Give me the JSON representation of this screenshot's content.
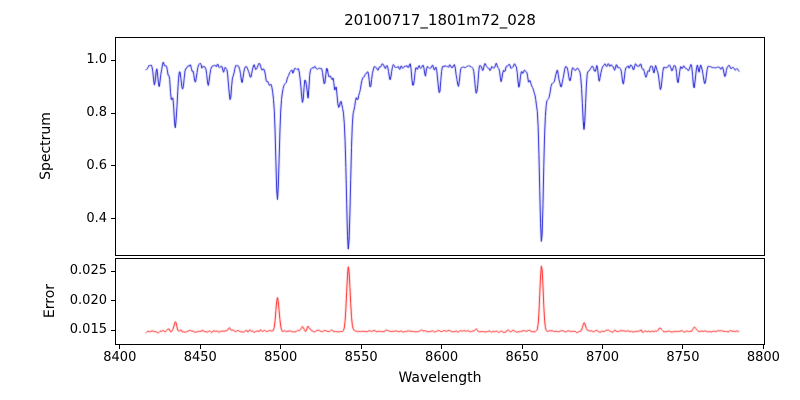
{
  "chart_data": {
    "type": "line",
    "title": "20100717_1801m72_028",
    "xlabel": "Wavelength",
    "xlim": [
      8397,
      8801
    ],
    "xticks": [
      {
        "v": 8400,
        "label": "8400"
      },
      {
        "v": 8450,
        "label": "8450"
      },
      {
        "v": 8500,
        "label": "8500"
      },
      {
        "v": 8550,
        "label": "8550"
      },
      {
        "v": 8600,
        "label": "8600"
      },
      {
        "v": 8650,
        "label": "8650"
      },
      {
        "v": 8700,
        "label": "8700"
      },
      {
        "v": 8750,
        "label": "8750"
      },
      {
        "v": 8800,
        "label": "8800"
      }
    ],
    "panels": [
      {
        "name": "spectrum",
        "ylabel": "Spectrum",
        "line_color": "#0000cd",
        "ylim": [
          0.26,
          1.087
        ],
        "yticks": [
          {
            "v": 0.4,
            "label": "0.4"
          },
          {
            "v": 0.6,
            "label": "0.6"
          },
          {
            "v": 0.8,
            "label": "0.8"
          },
          {
            "v": 1.0,
            "label": "1.0"
          }
        ],
        "series": {
          "x_start": 8416,
          "x_end": 8785,
          "step": 0.5,
          "continuum": 0.975,
          "noise_sigma": 0.01,
          "dip_probability": 0.07,
          "dip_max_depth": 0.05,
          "seed": 12345,
          "absorption_lines": [
            [
              8421.5,
              0.91,
              0.7,
              0,
              0
            ],
            [
              8424.5,
              0.9,
              0.7,
              0,
              0
            ],
            [
              8432.0,
              0.88,
              0.7,
              0,
              0
            ],
            [
              8434.5,
              0.745,
              0.9,
              0.03,
              2.5
            ],
            [
              8439.0,
              0.9,
              0.7,
              0,
              0
            ],
            [
              8447.0,
              0.92,
              0.7,
              0,
              0
            ],
            [
              8455.0,
              0.905,
              0.8,
              0,
              0
            ],
            [
              8468.5,
              0.87,
              0.9,
              0.02,
              2.5
            ],
            [
              8476.0,
              0.92,
              0.7,
              0,
              0
            ],
            [
              8481.0,
              0.93,
              0.7,
              0,
              0
            ],
            [
              8498.0,
              0.475,
              1.0,
              0.13,
              4.0
            ],
            [
              8513.5,
              0.835,
              0.8,
              0.02,
              2.0
            ],
            [
              8517.0,
              0.865,
              0.7,
              0,
              0
            ],
            [
              8527.0,
              0.92,
              0.7,
              0,
              0
            ],
            [
              8536.0,
              0.93,
              0.8,
              0,
              0
            ],
            [
              8542.1,
              0.29,
              1.2,
              0.17,
              6.0
            ],
            [
              8556.0,
              0.93,
              0.7,
              0,
              0
            ],
            [
              8568.0,
              0.93,
              0.7,
              0,
              0
            ],
            [
              8582.5,
              0.9,
              0.8,
              0,
              0
            ],
            [
              8598.5,
              0.885,
              0.8,
              0,
              0
            ],
            [
              8610.5,
              0.9,
              0.8,
              0,
              0
            ],
            [
              8621.5,
              0.875,
              0.8,
              0,
              0
            ],
            [
              8637.0,
              0.925,
              0.7,
              0,
              0
            ],
            [
              8648.0,
              0.91,
              0.8,
              0,
              0
            ],
            [
              8662.1,
              0.305,
              1.1,
              0.155,
              5.0
            ],
            [
              8674.5,
              0.9,
              0.8,
              0,
              0
            ],
            [
              8679.5,
              0.92,
              0.7,
              0,
              0
            ],
            [
              8688.5,
              0.735,
              0.9,
              0.03,
              2.5
            ],
            [
              8698.0,
              0.92,
              0.7,
              0,
              0
            ],
            [
              8713.0,
              0.905,
              0.8,
              0,
              0
            ],
            [
              8727.0,
              0.93,
              0.7,
              0,
              0
            ],
            [
              8736.0,
              0.885,
              0.9,
              0,
              0
            ],
            [
              8747.0,
              0.92,
              0.7,
              0,
              0
            ],
            [
              8757.0,
              0.895,
              0.8,
              0,
              0
            ],
            [
              8763.5,
              0.92,
              0.7,
              0,
              0
            ],
            [
              8776.0,
              0.93,
              0.7,
              0,
              0
            ]
          ]
        }
      },
      {
        "name": "error",
        "ylabel": "Error",
        "line_color": "#ff0000",
        "ylim": [
          0.0125,
          0.0272
        ],
        "yticks": [
          {
            "v": 0.015,
            "label": "0.015"
          },
          {
            "v": 0.02,
            "label": "0.020"
          },
          {
            "v": 0.025,
            "label": "0.025"
          }
        ],
        "series": {
          "x_start": 8416,
          "x_end": 8785,
          "step": 0.5,
          "baseline": 0.0148,
          "noise_sigma": 0.00015,
          "bump_probability": 0.04,
          "bump_max_height": 0.0006,
          "seed": 999,
          "peaks": [
            [
              8434.5,
              0.0017,
              0.9
            ],
            [
              8468.5,
              0.0006,
              0.9
            ],
            [
              8498.0,
              0.0057,
              1.0
            ],
            [
              8513.5,
              0.0009,
              0.8
            ],
            [
              8517.0,
              0.0006,
              0.8
            ],
            [
              8542.1,
              0.011,
              1.1
            ],
            [
              8621.5,
              0.0004,
              0.8
            ],
            [
              8662.1,
              0.0113,
              1.0
            ],
            [
              8688.5,
              0.0012,
              0.9
            ],
            [
              8736.0,
              0.0005,
              0.8
            ],
            [
              8757.0,
              0.0007,
              0.8
            ]
          ]
        }
      }
    ]
  }
}
